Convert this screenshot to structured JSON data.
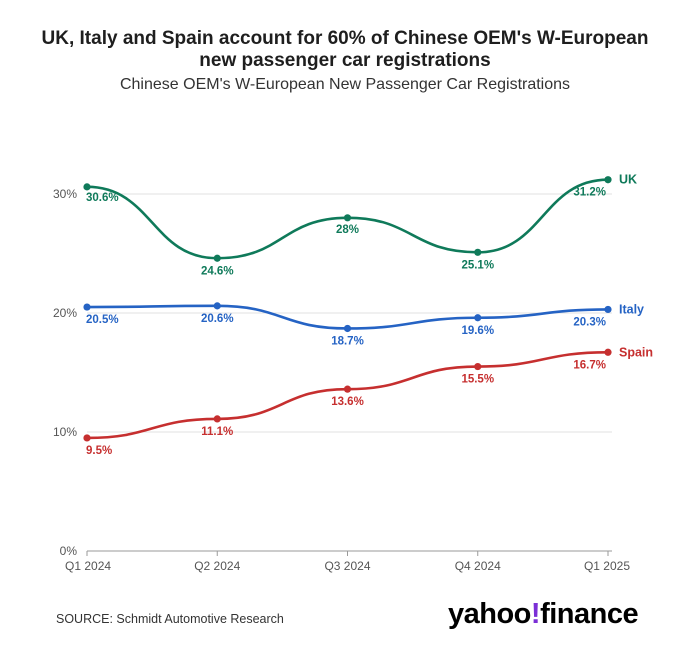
{
  "title": "UK, Italy and Spain account for 60% of Chinese OEM's W-European new passenger car registrations",
  "subtitle": "Chinese OEM's W-European New Passenger Car Registrations",
  "source": "SOURCE: Schmidt Automotive Research",
  "logo": {
    "text": "yahoo",
    "bang": "!",
    "suffix": "finance",
    "bang_color": "#7b2fd6"
  },
  "chart_data": {
    "type": "line",
    "title": "UK, Italy and Spain account for 60% of Chinese OEM's W-European new passenger car registrations",
    "subtitle": "Chinese OEM's W-European New Passenger Car Registrations",
    "categories": [
      "Q1 2024",
      "Q2 2024",
      "Q3 2024",
      "Q4 2024",
      "Q1 2025"
    ],
    "ylim": [
      0,
      35
    ],
    "yticks": [
      0,
      10,
      20,
      30
    ],
    "ytick_labels": [
      "0%",
      "10%",
      "20%",
      "30%"
    ],
    "grid": true,
    "series": [
      {
        "name": "UK",
        "color": "#0f7a5a",
        "values": [
          30.6,
          24.6,
          28,
          25.1,
          31.2
        ],
        "labels": [
          "30.6%",
          "24.6%",
          "28%",
          "25.1%",
          "31.2%"
        ]
      },
      {
        "name": "Italy",
        "color": "#2563c4",
        "values": [
          20.5,
          20.6,
          18.7,
          19.6,
          20.3
        ],
        "labels": [
          "20.5%",
          "20.6%",
          "18.7%",
          "19.6%",
          "20.3%"
        ]
      },
      {
        "name": "Spain",
        "color": "#c62f2f",
        "values": [
          9.5,
          11.1,
          13.6,
          15.5,
          16.7
        ],
        "labels": [
          "9.5%",
          "11.1%",
          "13.6%",
          "15.5%",
          "16.7%"
        ]
      }
    ]
  }
}
